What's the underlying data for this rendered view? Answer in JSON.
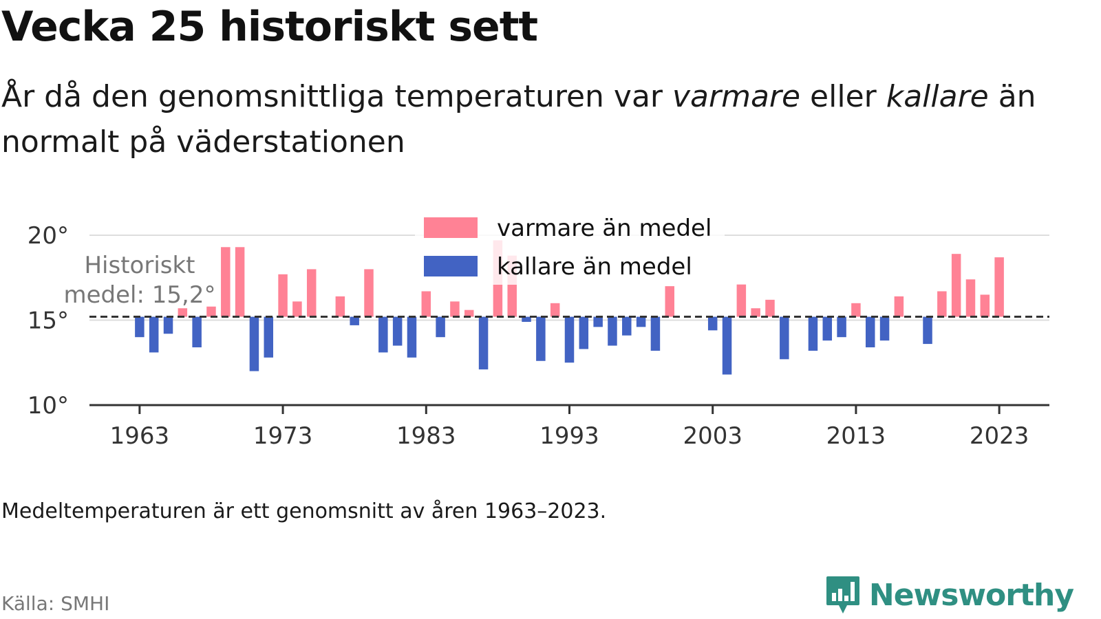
{
  "header": {
    "title": "Vecka 25 historiskt sett",
    "subtitle_part1": "År då den genomsnittliga temperaturen var ",
    "subtitle_warm": "varmare",
    "subtitle_part2": " eller ",
    "subtitle_cold": "kallare",
    "subtitle_part3": " än normalt på väderstationen"
  },
  "footer": {
    "note": "Medeltemperaturen är ett genomsnitt av åren 1963–2023.",
    "source": "Källa: SMHI",
    "brand": "Newsworthy"
  },
  "chart_data": {
    "type": "bar",
    "ylim": [
      10,
      21
    ],
    "y_ticks": [
      {
        "value": 10,
        "label": "10°"
      },
      {
        "value": 15,
        "label": "15°"
      },
      {
        "value": 20,
        "label": "20°"
      }
    ],
    "x_ticks": [
      1963,
      1973,
      1983,
      1993,
      2003,
      2013,
      2023
    ],
    "xlim": [
      1959.5,
      2026.5
    ],
    "mean": 15.2,
    "mean_label_line1": "Historiskt",
    "mean_label_line2": "medel: 15,2°",
    "grid": true,
    "legend_position": "top-center",
    "colors": {
      "warm": "#ff8295",
      "cold": "#4263c3",
      "mean_line": "#333333",
      "grid": "#dddddd",
      "axis": "#333333"
    },
    "series": [
      {
        "name": "varmare än medel",
        "color": "#ff8295"
      },
      {
        "name": "kallare än medel",
        "color": "#4263c3"
      }
    ],
    "years": [
      1963,
      1964,
      1965,
      1966,
      1967,
      1968,
      1969,
      1970,
      1971,
      1972,
      1973,
      1974,
      1975,
      1976,
      1977,
      1978,
      1979,
      1980,
      1981,
      1982,
      1983,
      1984,
      1985,
      1986,
      1987,
      1988,
      1989,
      1990,
      1991,
      1992,
      1993,
      1994,
      1995,
      1996,
      1997,
      1998,
      1999,
      2000,
      2001,
      2002,
      2003,
      2004,
      2005,
      2006,
      2007,
      2008,
      2009,
      2010,
      2011,
      2012,
      2013,
      2014,
      2015,
      2016,
      2017,
      2018,
      2019,
      2020,
      2021,
      2022,
      2023
    ],
    "values": [
      14.0,
      13.1,
      14.2,
      15.7,
      13.4,
      15.8,
      19.3,
      19.3,
      12.0,
      12.8,
      17.7,
      16.1,
      18.0,
      15.2,
      16.4,
      14.7,
      18.0,
      13.1,
      13.5,
      12.8,
      16.7,
      14.0,
      16.1,
      15.6,
      12.1,
      19.7,
      18.8,
      14.9,
      12.6,
      16.0,
      12.5,
      13.3,
      14.6,
      13.5,
      14.1,
      14.6,
      13.2,
      17.0,
      15.2,
      15.2,
      14.4,
      11.8,
      17.1,
      15.7,
      16.2,
      12.7,
      15.2,
      13.2,
      13.8,
      14.0,
      16.0,
      13.4,
      13.8,
      16.4,
      15.2,
      13.6,
      16.7,
      18.9,
      17.4,
      16.5,
      18.7
    ]
  }
}
